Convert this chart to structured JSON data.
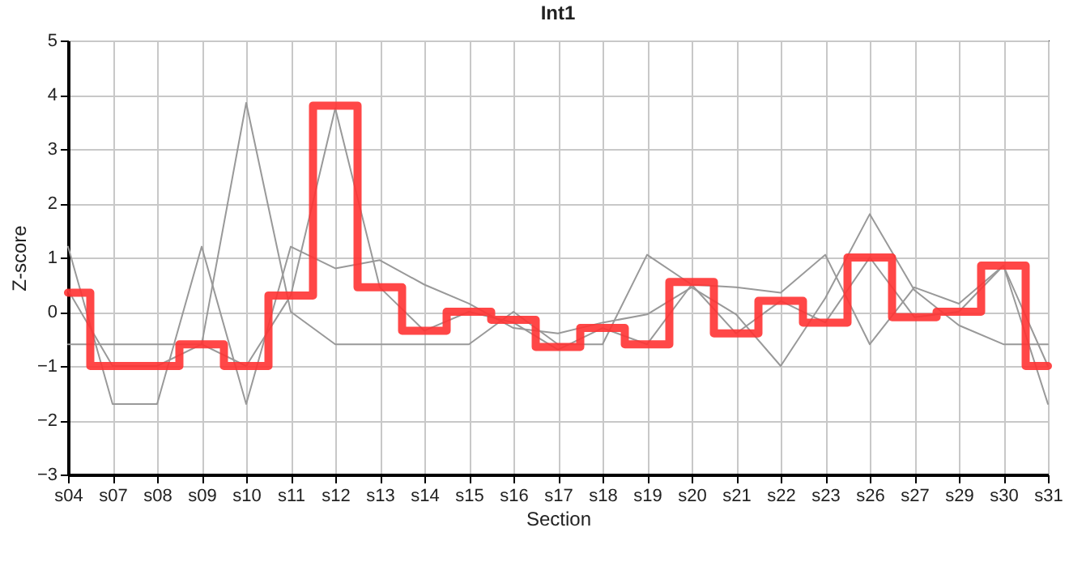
{
  "chart_data": {
    "type": "line",
    "title": "Int1",
    "xlabel": "Section",
    "ylabel": "Z-score",
    "categories": [
      "s04",
      "s07",
      "s08",
      "s09",
      "s10",
      "s11",
      "s12",
      "s13",
      "s14",
      "s15",
      "s16",
      "s17",
      "s18",
      "s19",
      "s20",
      "s21",
      "s22",
      "s23",
      "s26",
      "s27",
      "s29",
      "s30",
      "s31"
    ],
    "series": [
      {
        "color": "#999999",
        "values": [
          -0.6,
          -0.6,
          -0.6,
          -0.6,
          3.85,
          0.0,
          -0.6,
          -0.6,
          -0.6,
          -0.6,
          0.0,
          -0.6,
          -0.6,
          1.05,
          0.5,
          0.45,
          0.35,
          1.05,
          -0.6,
          0.45,
          0.15,
          0.85,
          -1.7
        ]
      },
      {
        "color": "#999999",
        "values": [
          1.2,
          -1.7,
          -1.7,
          1.2,
          -1.7,
          1.2,
          0.8,
          0.95,
          0.5,
          0.15,
          -0.3,
          -0.4,
          -0.2,
          -0.05,
          0.45,
          -0.05,
          -1.0,
          0.25,
          1.8,
          0.4,
          -0.25,
          -0.6,
          -0.6
        ]
      },
      {
        "color": "#999999",
        "values": [
          0.4,
          -1.0,
          -1.0,
          -0.6,
          -1.0,
          0.3,
          3.75,
          0.45,
          -0.35,
          0.0,
          -0.2,
          -0.7,
          -0.3,
          -0.6,
          0.5,
          -0.4,
          0.2,
          -0.2,
          1.0,
          -0.1,
          0.0,
          0.85,
          -1.0
        ]
      },
      {
        "type": "step",
        "color": "#ff3333",
        "values": [
          0.35,
          -1.0,
          -1.0,
          -0.6,
          -1.0,
          0.3,
          3.8,
          0.45,
          -0.35,
          0.0,
          -0.15,
          -0.65,
          -0.3,
          -0.6,
          0.55,
          -0.4,
          0.2,
          -0.2,
          1.0,
          -0.1,
          0.0,
          0.85,
          -1.0
        ]
      }
    ],
    "ylim": [
      -3,
      5
    ],
    "yticks": [
      -3,
      -2,
      -1,
      0,
      1,
      2,
      3,
      4,
      5
    ],
    "grid": true,
    "marker": "none",
    "line_style": "solid"
  }
}
